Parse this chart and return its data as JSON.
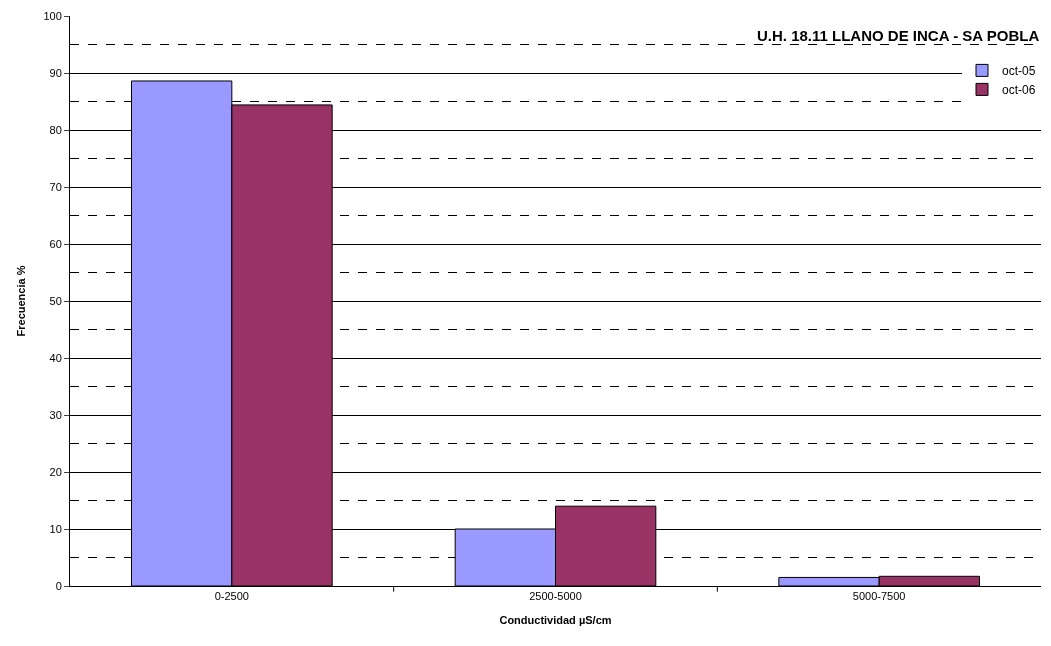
{
  "chart_data": {
    "type": "bar",
    "title": "U.H. 18.11 LLANO DE INCA - SA POBLA",
    "xlabel": "Conductividad µS/cm",
    "ylabel": "Frecuencia %",
    "categories": [
      "0-2500",
      "2500-5000",
      "5000-7500"
    ],
    "series": [
      {
        "name": "oct-05",
        "color": "#9999ff",
        "values": [
          88.6,
          10.0,
          1.5
        ]
      },
      {
        "name": "oct-06",
        "color": "#993366",
        "values": [
          84.4,
          14.0,
          1.7
        ]
      }
    ],
    "ylim": [
      0,
      100
    ],
    "yticks": [
      0,
      10,
      20,
      30,
      40,
      50,
      60,
      70,
      80,
      90,
      100
    ],
    "grid": "y",
    "legend": "top right"
  }
}
